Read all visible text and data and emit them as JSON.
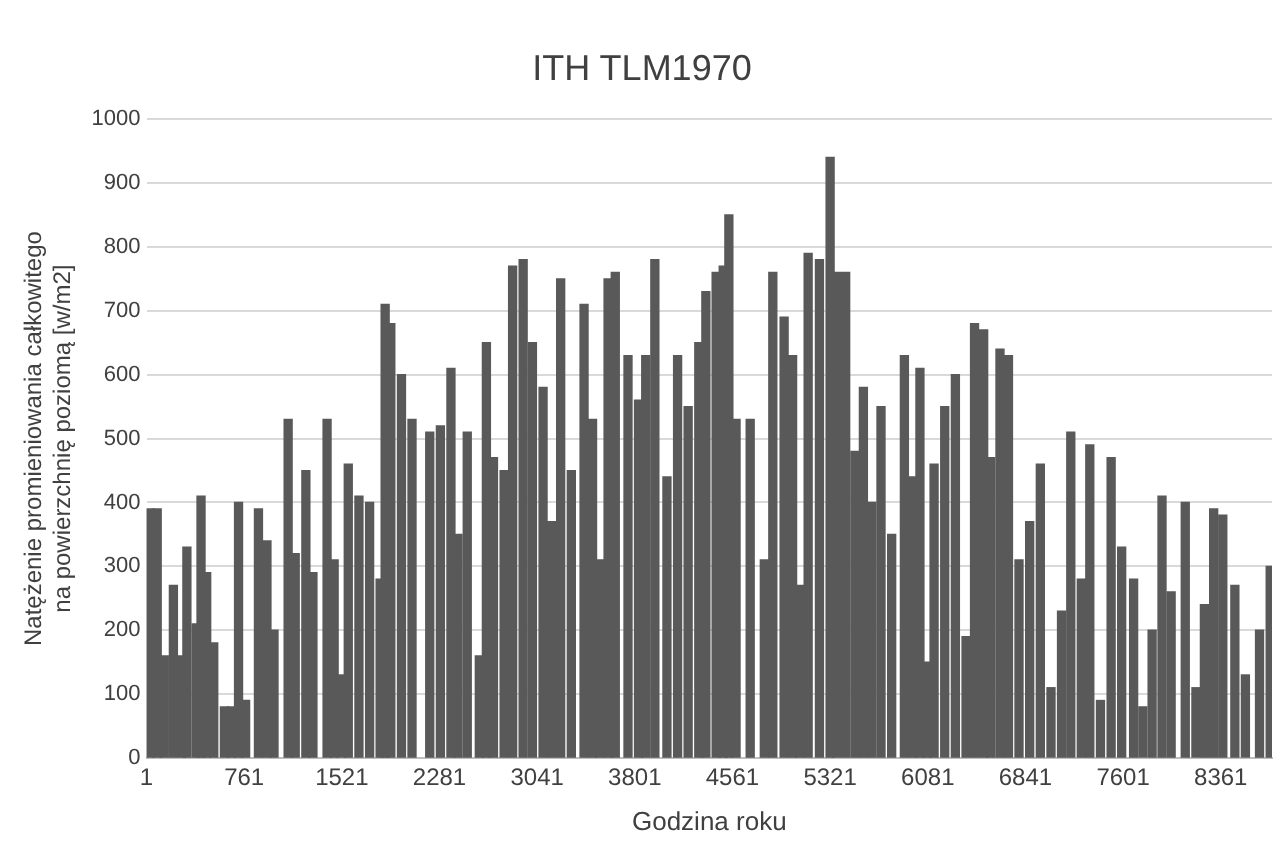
{
  "chart_data": {
    "type": "bar",
    "title": "ITH TLM1970",
    "xlabel": "Godzina roku",
    "ylabel": "Natężenie promieniowania całkowitego na powierzchnię poziomą [w/m2]",
    "x": [
      29,
      84,
      139,
      210,
      277,
      315,
      387,
      425,
      469,
      524,
      607,
      662,
      717,
      772,
      872,
      938,
      993,
      1103,
      1158,
      1241,
      1296,
      1406,
      1461,
      1516,
      1571,
      1654,
      1737,
      1819,
      1858,
      1902,
      1985,
      2067,
      2205,
      2288,
      2370,
      2425,
      2497,
      2591,
      2646,
      2701,
      2784,
      2850,
      2932,
      3004,
      3087,
      3153,
      3224,
      3307,
      3406,
      3472,
      3528,
      3593,
      3649,
      3748,
      3830,
      3886,
      3957,
      4051,
      4134,
      4216,
      4299,
      4354,
      4434,
      4489,
      4533,
      4589,
      4699,
      4809,
      4875,
      4963,
      5029,
      5084,
      5150,
      5238,
      5321,
      5371,
      5442,
      5514,
      5580,
      5646,
      5717,
      5800,
      5899,
      5965,
      6020,
      6075,
      6130,
      6213,
      6296,
      6379,
      6445,
      6516,
      6571,
      6643,
      6709,
      6791,
      6874,
      6957,
      7040,
      7122,
      7194,
      7276,
      7342,
      7425,
      7508,
      7590,
      7683,
      7755,
      7827,
      7904,
      7975,
      8085,
      8168,
      8234,
      8306,
      8377,
      8471,
      8553,
      8663,
      8746
    ],
    "values": [
      390,
      390,
      160,
      270,
      160,
      330,
      210,
      410,
      290,
      180,
      80,
      80,
      400,
      90,
      390,
      340,
      200,
      530,
      320,
      450,
      290,
      530,
      310,
      130,
      460,
      410,
      400,
      280,
      710,
      680,
      600,
      530,
      510,
      520,
      610,
      350,
      510,
      160,
      650,
      470,
      450,
      770,
      780,
      650,
      580,
      370,
      750,
      450,
      710,
      530,
      310,
      750,
      760,
      630,
      560,
      630,
      780,
      440,
      630,
      550,
      650,
      730,
      760,
      770,
      850,
      530,
      530,
      310,
      760,
      690,
      630,
      270,
      790,
      780,
      940,
      760,
      760,
      480,
      580,
      400,
      550,
      350,
      630,
      440,
      610,
      150,
      460,
      550,
      600,
      190,
      680,
      670,
      470,
      640,
      630,
      310,
      370,
      460,
      110,
      230,
      510,
      280,
      490,
      90,
      470,
      330,
      280,
      80,
      200,
      410,
      260,
      400,
      110,
      240,
      390,
      380,
      270,
      130,
      200,
      300
    ],
    "color": "#595959",
    "xlim": [
      1,
      8760
    ],
    "xticks": [
      1,
      761,
      1521,
      2281,
      3041,
      3801,
      4561,
      5321,
      6081,
      6841,
      7601,
      8361
    ],
    "ylim": [
      0,
      1000
    ],
    "yticks": [
      0,
      100,
      200,
      300,
      400,
      500,
      600,
      700,
      800,
      900,
      1000
    ],
    "grid": "y",
    "legend": false
  }
}
